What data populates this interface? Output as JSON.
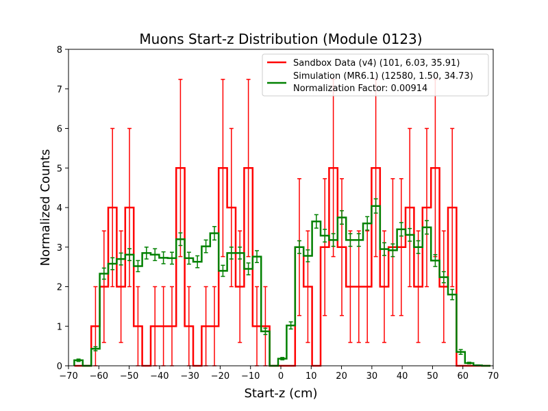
{
  "chart_data": {
    "type": "histogram-step",
    "title": "Muons Start-z Distribution (Module 0123)",
    "xlabel": "Start-z (cm)",
    "ylabel": "Normalized Counts",
    "xlim": [
      -70,
      70
    ],
    "ylim": [
      0,
      8
    ],
    "xticks": [
      -70,
      -60,
      -50,
      -40,
      -30,
      -20,
      -10,
      0,
      10,
      20,
      30,
      40,
      50,
      60,
      70
    ],
    "xtick_labels": [
      "−70",
      "−60",
      "−50",
      "−40",
      "−30",
      "−20",
      "−10",
      "0",
      "10",
      "20",
      "30",
      "40",
      "50",
      "60",
      "70"
    ],
    "yticks": [
      0,
      1,
      2,
      3,
      4,
      5,
      6,
      7,
      8
    ],
    "ytick_labels": [
      "0",
      "1",
      "2",
      "3",
      "4",
      "5",
      "6",
      "7",
      "8"
    ],
    "legend_position": "top-right",
    "bin_edges": [
      -68.1,
      -65.3,
      -62.5,
      -59.7,
      -56.9,
      -54.1,
      -51.3,
      -48.5,
      -45.7,
      -42.9,
      -40.1,
      -37.3,
      -34.5,
      -31.7,
      -28.9,
      -26.1,
      -23.3,
      -20.5,
      -17.7,
      -14.9,
      -12.1,
      -9.3,
      -6.5,
      -3.7,
      -0.9,
      1.9,
      4.7,
      7.5,
      10.3,
      13.1,
      15.9,
      18.7,
      21.5,
      24.3,
      27.1,
      29.9,
      32.7,
      35.5,
      38.3,
      41.1,
      43.9,
      46.7,
      49.5,
      52.3,
      55.1,
      57.9,
      60.7,
      63.5,
      66.3,
      69.1
    ],
    "series": [
      {
        "name": "Sandbox Data (v4) (101, 6.03, 35.91)",
        "color": "#ff0000",
        "values": [
          0,
          0,
          1,
          2,
          4,
          2,
          4,
          1,
          0,
          1,
          1,
          1,
          5,
          1,
          0,
          1,
          1,
          5,
          4,
          2,
          5,
          1,
          1,
          0,
          0,
          0,
          3,
          2,
          0,
          3,
          5,
          3,
          2,
          2,
          2,
          5,
          2,
          3,
          3,
          4,
          2,
          4,
          5,
          2,
          4,
          0,
          0,
          0,
          0
        ],
        "errors": [
          0,
          0,
          1,
          1.41,
          2,
          1.41,
          2,
          1,
          0,
          1,
          1,
          1,
          2.24,
          1,
          0,
          1,
          1,
          2.24,
          2,
          1.41,
          2.24,
          1,
          1,
          0,
          0,
          0,
          1.73,
          1.41,
          0,
          1.73,
          2.24,
          1.73,
          1.41,
          1.41,
          1.41,
          2.24,
          1.41,
          1.73,
          1.73,
          2,
          1.41,
          2,
          2.24,
          1.41,
          2,
          0,
          0,
          0,
          0
        ]
      },
      {
        "name": "Simulation (MR6.1) (12580, 1.50, 34.73)",
        "subtitle": "Normalization Factor: 0.00914",
        "color": "#008000",
        "values": [
          0.14,
          0.0,
          0.43,
          2.33,
          2.58,
          2.7,
          2.81,
          2.52,
          2.85,
          2.81,
          2.73,
          2.72,
          3.2,
          2.72,
          2.63,
          3.02,
          3.35,
          2.4,
          2.85,
          2.85,
          2.45,
          2.76,
          0.87,
          0.0,
          0.18,
          1.02,
          3.0,
          2.78,
          3.65,
          3.29,
          3.18,
          3.75,
          3.18,
          3.18,
          3.6,
          4.04,
          2.95,
          2.92,
          3.45,
          3.31,
          3.0,
          3.5,
          2.66,
          2.24,
          1.8,
          0.35,
          0.07,
          0.01,
          0.0
        ],
        "errors": [
          0.03,
          0,
          0.05,
          0.14,
          0.15,
          0.15,
          0.15,
          0.14,
          0.15,
          0.15,
          0.15,
          0.15,
          0.16,
          0.15,
          0.15,
          0.16,
          0.17,
          0.14,
          0.15,
          0.15,
          0.15,
          0.15,
          0.08,
          0,
          0.03,
          0.09,
          0.16,
          0.15,
          0.17,
          0.16,
          0.16,
          0.17,
          0.16,
          0.16,
          0.17,
          0.18,
          0.16,
          0.16,
          0.17,
          0.16,
          0.16,
          0.17,
          0.15,
          0.14,
          0.13,
          0.06,
          0.02,
          0.01,
          0
        ]
      }
    ]
  }
}
